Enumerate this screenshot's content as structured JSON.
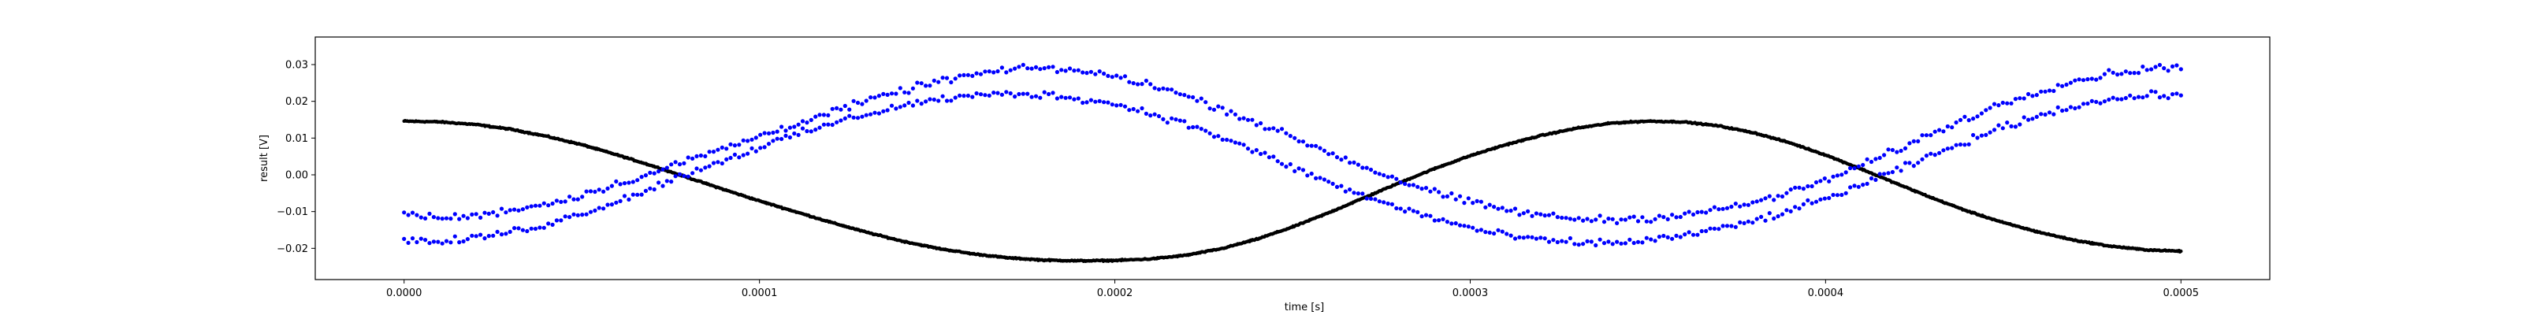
{
  "chart_data": {
    "type": "scatter",
    "title": "",
    "xlabel": "time [s]",
    "ylabel": "result [V]",
    "xlim": [
      -2.5e-05,
      0.000525
    ],
    "ylim": [
      -0.0285,
      0.0375
    ],
    "grid": false,
    "legend": "none",
    "x_ticks": [
      {
        "value": 0.0,
        "label": "0.0000"
      },
      {
        "value": 0.0001,
        "label": "0.0001"
      },
      {
        "value": 0.0002,
        "label": "0.0002"
      },
      {
        "value": 0.0003,
        "label": "0.0003"
      },
      {
        "value": 0.0004,
        "label": "0.0004"
      },
      {
        "value": 0.0005,
        "label": "0.0005"
      }
    ],
    "y_ticks": [
      {
        "value": -0.02,
        "label": "−0.02"
      },
      {
        "value": -0.01,
        "label": "−0.01"
      },
      {
        "value": 0.0,
        "label": "0.00"
      },
      {
        "value": 0.01,
        "label": "0.01"
      },
      {
        "value": 0.02,
        "label": "0.02"
      },
      {
        "value": 0.03,
        "label": "0.03"
      }
    ],
    "series": [
      {
        "color": "#000000",
        "marker": "dense-dots",
        "x": [
          0.0,
          1e-05,
          2e-05,
          3e-05,
          4e-05,
          5e-05,
          6e-05,
          7e-05,
          8e-05,
          9e-05,
          0.0001,
          0.00011,
          0.00012,
          0.00013,
          0.00014,
          0.00015,
          0.00016,
          0.00017,
          0.00018,
          0.00019,
          0.0002,
          0.00021,
          0.00022,
          0.00023,
          0.00024,
          0.00025,
          0.00026,
          0.00027,
          0.00028,
          0.00029,
          0.0003,
          0.00031,
          0.00032,
          0.00033,
          0.00034,
          0.00035,
          0.00036,
          0.00037,
          0.00038,
          0.00039,
          0.0004,
          0.00041,
          0.00042,
          0.00043,
          0.00044,
          0.00045,
          0.00046,
          0.00047,
          0.00048,
          0.00049,
          0.0005
        ],
        "y": [
          0.0146,
          0.0144,
          0.0137,
          0.0124,
          0.0105,
          0.0082,
          0.0054,
          0.0024,
          -0.0008,
          -0.004,
          -0.0071,
          -0.01,
          -0.0129,
          -0.0156,
          -0.018,
          -0.02,
          -0.0215,
          -0.0226,
          -0.0232,
          -0.0234,
          -0.0233,
          -0.0229,
          -0.0219,
          -0.0201,
          -0.0175,
          -0.0142,
          -0.0104,
          -0.0063,
          -0.0022,
          0.0017,
          0.0052,
          0.0082,
          0.0107,
          0.0127,
          0.0141,
          0.0146,
          0.0144,
          0.0133,
          0.0114,
          0.0087,
          0.0054,
          0.0016,
          -0.0024,
          -0.0063,
          -0.0099,
          -0.013,
          -0.0156,
          -0.0178,
          -0.0194,
          -0.0204,
          -0.0208
        ]
      },
      {
        "color": "#0000ff",
        "marker": "dot",
        "x": [
          0.0,
          1e-05,
          2e-05,
          3e-05,
          4e-05,
          5e-05,
          6e-05,
          7e-05,
          8e-05,
          9e-05,
          0.0001,
          0.00011,
          0.00012,
          0.00013,
          0.00014,
          0.00015,
          0.00016,
          0.00017,
          0.00018,
          0.00019,
          0.0002,
          0.00021,
          0.00022,
          0.00023,
          0.00024,
          0.00025,
          0.00026,
          0.00027,
          0.00028,
          0.00029,
          0.0003,
          0.00031,
          0.00032,
          0.00033,
          0.00034,
          0.00035,
          0.00036,
          0.00037,
          0.00038,
          0.00039,
          0.0004,
          0.00041,
          0.00042,
          0.00043,
          0.00044,
          0.00045,
          0.00046,
          0.00047,
          0.00048,
          0.00049,
          0.0005
        ],
        "y": [
          -0.0105,
          -0.0118,
          -0.0112,
          -0.0095,
          -0.008,
          -0.0055,
          -0.0025,
          0.0005,
          0.004,
          0.0072,
          0.0105,
          0.0138,
          0.017,
          0.02,
          0.0228,
          0.0254,
          0.0272,
          0.0285,
          0.0292,
          0.0282,
          0.0268,
          0.0246,
          0.0215,
          0.018,
          0.0142,
          0.0102,
          0.0062,
          0.0022,
          -0.0015,
          -0.0048,
          -0.0075,
          -0.0095,
          -0.011,
          -0.012,
          -0.0122,
          -0.0118,
          -0.0108,
          -0.0095,
          -0.0075,
          -0.0048,
          -0.0015,
          0.0025,
          0.0068,
          0.0112,
          0.0155,
          0.0195,
          0.0228,
          0.0255,
          0.0275,
          0.0288,
          0.0295
        ]
      },
      {
        "color": "#0000ff",
        "marker": "dot",
        "x": [
          0.0,
          1e-05,
          2e-05,
          3e-05,
          4e-05,
          5e-05,
          6e-05,
          7e-05,
          8e-05,
          9e-05,
          0.0001,
          0.00011,
          0.00012,
          0.00013,
          0.00014,
          0.00015,
          0.00016,
          0.00017,
          0.00018,
          0.00019,
          0.0002,
          0.00021,
          0.00022,
          0.00023,
          0.00024,
          0.00025,
          0.00026,
          0.00027,
          0.00028,
          0.00029,
          0.0003,
          0.00031,
          0.00032,
          0.00033,
          0.00034,
          0.00035,
          0.00036,
          0.00037,
          0.00038,
          0.00039,
          0.0004,
          0.00041,
          0.00042,
          0.00043,
          0.00044,
          0.00045,
          0.00046,
          0.00047,
          0.00048,
          0.00049,
          0.0005
        ],
        "y": [
          -0.0175,
          -0.0185,
          -0.0172,
          -0.0155,
          -0.0135,
          -0.0105,
          -0.0072,
          -0.0035,
          0.0005,
          0.004,
          0.0075,
          0.0108,
          0.0138,
          0.0165,
          0.0188,
          0.0205,
          0.0215,
          0.022,
          0.0218,
          0.0208,
          0.0192,
          0.0168,
          0.0138,
          0.0102,
          0.0062,
          0.002,
          -0.002,
          -0.0058,
          -0.009,
          -0.0118,
          -0.0145,
          -0.0165,
          -0.0178,
          -0.0185,
          -0.0185,
          -0.0178,
          -0.0165,
          -0.0148,
          -0.0125,
          -0.0098,
          -0.0065,
          -0.0028,
          0.0012,
          0.0052,
          0.0092,
          0.013,
          0.0162,
          0.0188,
          0.0205,
          0.0215,
          0.022
        ]
      }
    ]
  }
}
